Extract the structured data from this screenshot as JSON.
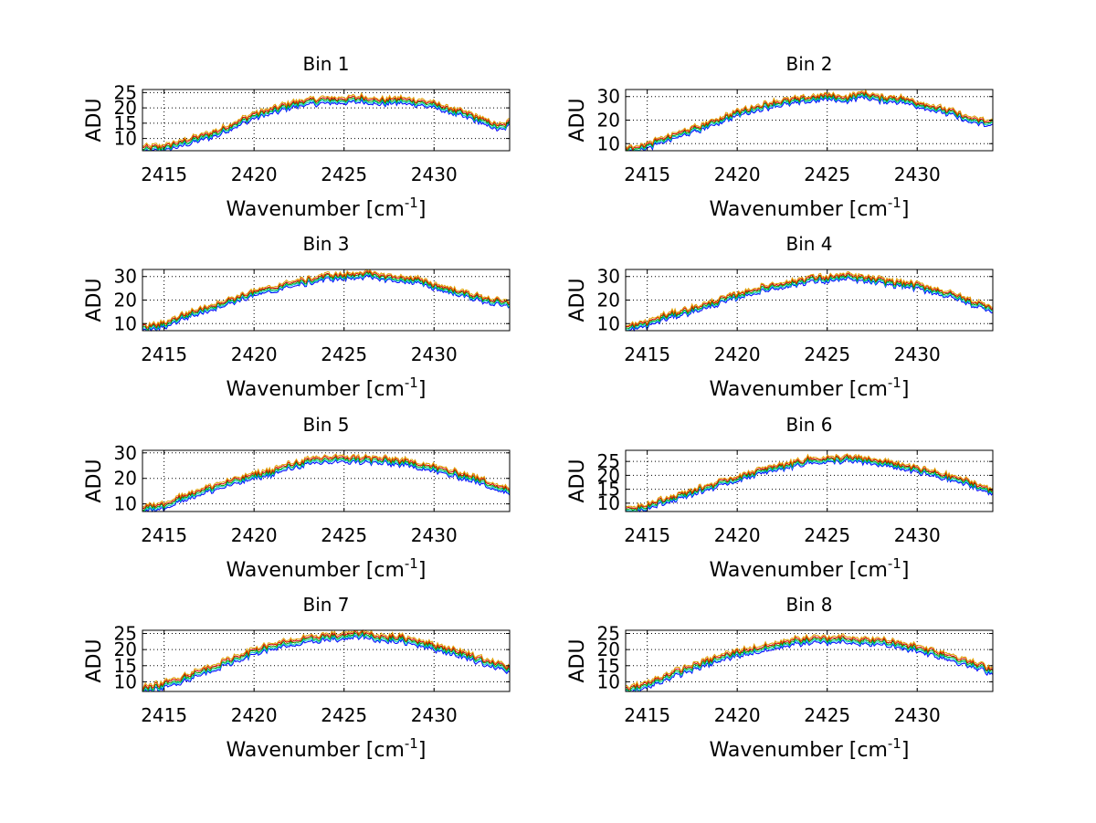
{
  "figure": {
    "colors": [
      "#0000ff",
      "#00c8c8",
      "#00a000",
      "#d00000",
      "#e0a000"
    ],
    "ylabel": "ADU",
    "xlabel_main": "Wavenumber [cm",
    "xlabel_sup": "-1",
    "xlabel_close": "]"
  },
  "chart_data": [
    {
      "type": "line",
      "title": "Bin 1",
      "xlim": [
        2413.8,
        2434.2
      ],
      "ylim": [
        6,
        26
      ],
      "xticks": [
        2415,
        2420,
        2425,
        2430
      ],
      "yticks": [
        10,
        15,
        20,
        25
      ],
      "grid": true,
      "series_count": 5,
      "series_offset": 0.5,
      "profile": [
        [
          2413.8,
          6.5
        ],
        [
          2415,
          7
        ],
        [
          2416,
          8.5
        ],
        [
          2418,
          12
        ],
        [
          2420,
          17.5
        ],
        [
          2421,
          19
        ],
        [
          2422,
          21
        ],
        [
          2423,
          22
        ],
        [
          2424,
          22.5
        ],
        [
          2425,
          22.5
        ],
        [
          2426,
          23
        ],
        [
          2427,
          22
        ],
        [
          2428,
          22.5
        ],
        [
          2429,
          22
        ],
        [
          2430,
          21
        ],
        [
          2431,
          19
        ],
        [
          2432,
          17.5
        ],
        [
          2433,
          15
        ],
        [
          2433.7,
          13.5
        ],
        [
          2434.2,
          15
        ]
      ]
    },
    {
      "type": "line",
      "title": "Bin 2",
      "xlim": [
        2413.8,
        2434.2
      ],
      "ylim": [
        7,
        33
      ],
      "xticks": [
        2415,
        2420,
        2425,
        2430
      ],
      "yticks": [
        10,
        20,
        30
      ],
      "grid": true,
      "series_count": 5,
      "series_offset": 0.6,
      "profile": [
        [
          2413.8,
          7.5
        ],
        [
          2415,
          9
        ],
        [
          2416,
          12
        ],
        [
          2418,
          17
        ],
        [
          2420,
          23
        ],
        [
          2421,
          25
        ],
        [
          2422,
          27
        ],
        [
          2423,
          28
        ],
        [
          2424,
          29
        ],
        [
          2425,
          30
        ],
        [
          2426,
          29
        ],
        [
          2427,
          31
        ],
        [
          2428,
          29
        ],
        [
          2429,
          29
        ],
        [
          2430,
          27
        ],
        [
          2431,
          25
        ],
        [
          2432,
          23
        ],
        [
          2433,
          20
        ],
        [
          2434.2,
          18.5
        ]
      ]
    },
    {
      "type": "line",
      "title": "Bin 3",
      "xlim": [
        2413.8,
        2434.2
      ],
      "ylim": [
        7,
        33
      ],
      "xticks": [
        2415,
        2420,
        2425,
        2430
      ],
      "yticks": [
        10,
        20,
        30
      ],
      "grid": true,
      "series_count": 5,
      "series_offset": 0.6,
      "profile": [
        [
          2413.8,
          8
        ],
        [
          2415,
          9.5
        ],
        [
          2416,
          13
        ],
        [
          2418,
          18
        ],
        [
          2420,
          23
        ],
        [
          2421,
          24.5
        ],
        [
          2422,
          27
        ],
        [
          2423,
          28
        ],
        [
          2424,
          30
        ],
        [
          2425,
          30
        ],
        [
          2426,
          31
        ],
        [
          2427,
          30
        ],
        [
          2428,
          29
        ],
        [
          2429,
          28.5
        ],
        [
          2430,
          26
        ],
        [
          2431,
          24
        ],
        [
          2432,
          22
        ],
        [
          2433,
          20
        ],
        [
          2434.2,
          18
        ]
      ]
    },
    {
      "type": "line",
      "title": "Bin 4",
      "xlim": [
        2413.8,
        2434.2
      ],
      "ylim": [
        7,
        33
      ],
      "xticks": [
        2415,
        2420,
        2425,
        2430
      ],
      "yticks": [
        10,
        20,
        30
      ],
      "grid": true,
      "series_count": 5,
      "series_offset": 0.6,
      "profile": [
        [
          2413.8,
          8
        ],
        [
          2415,
          10
        ],
        [
          2416,
          13
        ],
        [
          2418,
          17
        ],
        [
          2420,
          22
        ],
        [
          2421,
          24
        ],
        [
          2422,
          26
        ],
        [
          2423,
          27
        ],
        [
          2424,
          29
        ],
        [
          2425,
          29
        ],
        [
          2426,
          30
        ],
        [
          2427,
          29
        ],
        [
          2428,
          28
        ],
        [
          2429,
          27
        ],
        [
          2430,
          26
        ],
        [
          2431,
          24
        ],
        [
          2432,
          22
        ],
        [
          2433,
          19
        ],
        [
          2434.2,
          16.5
        ]
      ]
    },
    {
      "type": "line",
      "title": "Bin 5",
      "xlim": [
        2413.8,
        2434.2
      ],
      "ylim": [
        7,
        31
      ],
      "xticks": [
        2415,
        2420,
        2425,
        2430
      ],
      "yticks": [
        10,
        20,
        30
      ],
      "grid": true,
      "series_count": 5,
      "series_offset": 0.6,
      "profile": [
        [
          2413.8,
          8
        ],
        [
          2415,
          9.5
        ],
        [
          2416,
          12.5
        ],
        [
          2418,
          17
        ],
        [
          2420,
          21
        ],
        [
          2421,
          22.5
        ],
        [
          2422,
          25
        ],
        [
          2423,
          26.5
        ],
        [
          2424,
          27.5
        ],
        [
          2425,
          27.5
        ],
        [
          2426,
          27.5
        ],
        [
          2427,
          27
        ],
        [
          2428,
          26.5
        ],
        [
          2429,
          25.5
        ],
        [
          2430,
          24
        ],
        [
          2431,
          22
        ],
        [
          2432,
          20.5
        ],
        [
          2433,
          18
        ],
        [
          2434.2,
          15
        ]
      ]
    },
    {
      "type": "line",
      "title": "Bin 6",
      "xlim": [
        2413.8,
        2434.2
      ],
      "ylim": [
        7,
        29
      ],
      "xticks": [
        2415,
        2420,
        2425,
        2430
      ],
      "yticks": [
        10,
        15,
        20,
        25
      ],
      "grid": true,
      "series_count": 5,
      "series_offset": 0.5,
      "profile": [
        [
          2413.8,
          7.5
        ],
        [
          2415,
          9
        ],
        [
          2416,
          11
        ],
        [
          2418,
          15
        ],
        [
          2420,
          19
        ],
        [
          2421,
          21
        ],
        [
          2422,
          22.5
        ],
        [
          2423,
          24
        ],
        [
          2424,
          25.5
        ],
        [
          2425,
          25.5
        ],
        [
          2426,
          26
        ],
        [
          2427,
          25.5
        ],
        [
          2428,
          24.5
        ],
        [
          2429,
          23.5
        ],
        [
          2430,
          22
        ],
        [
          2431,
          20.5
        ],
        [
          2432,
          19
        ],
        [
          2433,
          17
        ],
        [
          2434.2,
          14
        ]
      ]
    },
    {
      "type": "line",
      "title": "Bin 7",
      "xlim": [
        2413.8,
        2434.2
      ],
      "ylim": [
        7,
        26
      ],
      "xticks": [
        2415,
        2420,
        2425,
        2430
      ],
      "yticks": [
        10,
        15,
        20,
        25
      ],
      "grid": true,
      "series_count": 5,
      "series_offset": 0.5,
      "profile": [
        [
          2413.8,
          7.5
        ],
        [
          2415,
          9
        ],
        [
          2416,
          11
        ],
        [
          2418,
          15
        ],
        [
          2420,
          19.5
        ],
        [
          2421,
          21
        ],
        [
          2422,
          22
        ],
        [
          2423,
          23
        ],
        [
          2424,
          24
        ],
        [
          2425,
          24
        ],
        [
          2426,
          25
        ],
        [
          2427,
          23.5
        ],
        [
          2428,
          23.5
        ],
        [
          2429,
          22.5
        ],
        [
          2430,
          21
        ],
        [
          2431,
          19.5
        ],
        [
          2432,
          18
        ],
        [
          2433,
          16
        ],
        [
          2434.2,
          14
        ]
      ]
    },
    {
      "type": "line",
      "title": "Bin 8",
      "xlim": [
        2413.8,
        2434.2
      ],
      "ylim": [
        7,
        26
      ],
      "xticks": [
        2415,
        2420,
        2425,
        2430
      ],
      "yticks": [
        10,
        15,
        20,
        25
      ],
      "grid": true,
      "series_count": 5,
      "series_offset": 0.5,
      "profile": [
        [
          2413.8,
          7.5
        ],
        [
          2415,
          9
        ],
        [
          2416,
          11.5
        ],
        [
          2418,
          15.5
        ],
        [
          2420,
          19
        ],
        [
          2421,
          20
        ],
        [
          2422,
          21
        ],
        [
          2423,
          22.5
        ],
        [
          2424,
          23
        ],
        [
          2425,
          23
        ],
        [
          2426,
          23.5
        ],
        [
          2427,
          22.5
        ],
        [
          2428,
          22.5
        ],
        [
          2429,
          21.5
        ],
        [
          2430,
          20.5
        ],
        [
          2431,
          19
        ],
        [
          2432,
          17.5
        ],
        [
          2433,
          15.5
        ],
        [
          2434.2,
          13.5
        ]
      ]
    }
  ]
}
